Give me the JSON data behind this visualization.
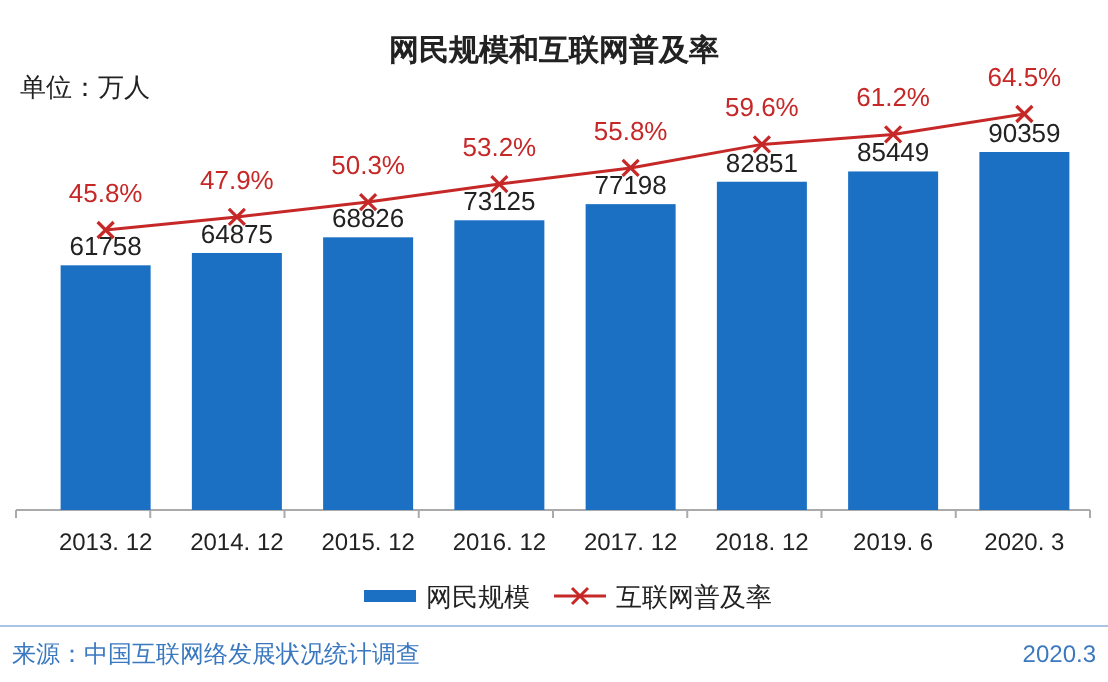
{
  "chart_data": {
    "type": "bar",
    "title": "网民规模和互联网普及率",
    "categories": [
      "2013. 12",
      "2014. 12",
      "2015. 12",
      "2016. 12",
      "2017. 12",
      "2018. 12",
      "2019. 6",
      "2020. 3"
    ],
    "series": [
      {
        "name": "网民规模",
        "color": "#1b70c4",
        "values": [
          61758,
          64875,
          68826,
          73125,
          77198,
          82851,
          85449,
          90359
        ]
      },
      {
        "name": "互联网普及率",
        "type": "line",
        "axis": "y2",
        "color": "#c62828",
        "values": [
          45.8,
          47.9,
          50.3,
          53.2,
          55.8,
          59.6,
          61.2,
          64.5
        ],
        "value_labels": [
          "45.8%",
          "47.9%",
          "50.3%",
          "53.2%",
          "55.8%",
          "59.6%",
          "61.2%",
          "64.5%"
        ]
      }
    ],
    "data_labels": true,
    "marker": "cross",
    "legend": "bottom",
    "annotations": [
      "单位：万人",
      "来源：中国互联网络发展状况统计调查",
      "2020.3"
    ]
  }
}
